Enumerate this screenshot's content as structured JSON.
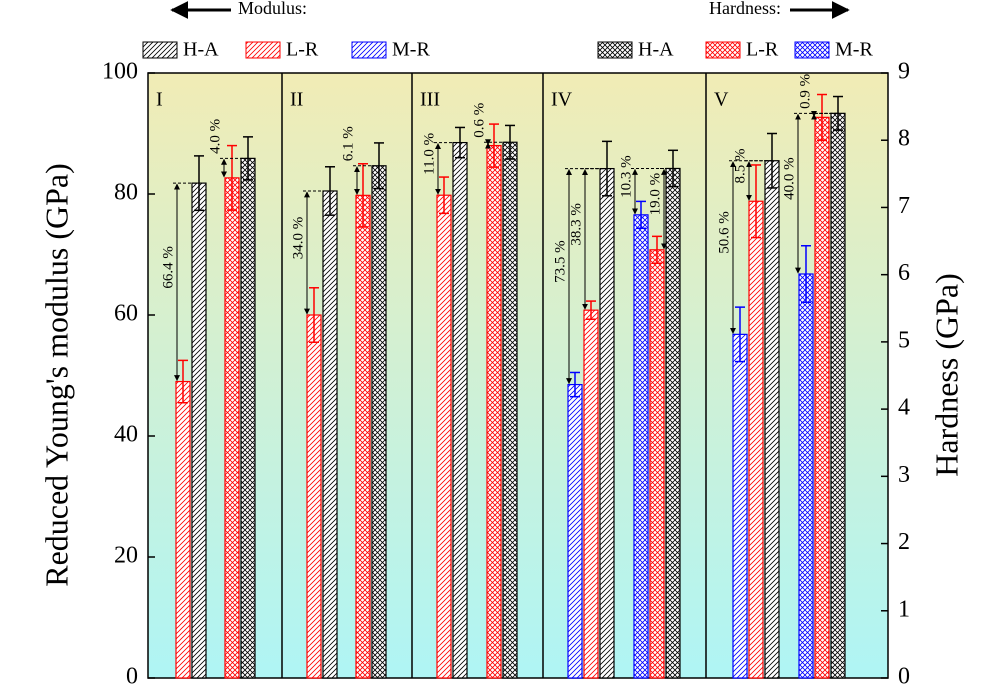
{
  "chart_data": {
    "type": "bar",
    "legend_label_left": "Modulus:",
    "legend_label_right": "Hardness:",
    "y_label": "Reduced Young's modulus (GPa)",
    "y2_label": "Hardness (GPa)",
    "categories": [
      "I",
      "II",
      "III",
      "IV",
      "V"
    ],
    "series": [
      {
        "name": "H-A",
        "color": "#000000",
        "pattern": "hatch",
        "values": [
          81.8,
          80.5,
          88.5,
          84.2,
          85.5
        ],
        "errors": [
          4.5,
          4,
          2.5,
          4.5,
          4.5
        ]
      },
      {
        "name": "L-R",
        "color": "#ff0000",
        "pattern": "hatch",
        "values": [
          49,
          60,
          79.8,
          60.8,
          78.8
        ],
        "errors": [
          3.5,
          4.5,
          3,
          1.5,
          6
        ]
      },
      {
        "name": "M-R",
        "color": "#0000ff",
        "pattern": "hatch",
        "values": [
          null,
          null,
          null,
          48.5,
          56.8
        ],
        "errors": [
          null,
          null,
          null,
          2,
          4.5
        ]
      },
      {
        "name": "H-A",
        "color": "#000000",
        "pattern": "cross",
        "axis": "y2",
        "values": [
          7.73,
          7.62,
          7.97,
          7.58,
          8.4
        ],
        "errors": [
          0.32,
          0.34,
          0.25,
          0.27,
          0.25
        ]
      },
      {
        "name": "L-R",
        "color": "#ff0000",
        "pattern": "cross",
        "axis": "y2",
        "values": [
          7.44,
          7.18,
          7.92,
          6.37,
          8.34
        ],
        "errors": [
          0.48,
          0.47,
          0.32,
          0.2,
          0.34
        ]
      },
      {
        "name": "M-R",
        "color": "#0000ff",
        "pattern": "cross",
        "axis": "y2",
        "values": [
          null,
          null,
          null,
          6.89,
          6.01
        ],
        "errors": [
          null,
          null,
          null,
          0.2,
          0.42
        ]
      }
    ],
    "annotations": [
      "66.4 %",
      "4.0 %",
      "34.0 %",
      "6.1 %",
      "11.0 %",
      "0.6 %",
      "73.5 %",
      "38.3 %",
      "10.3 %",
      "19.0 %",
      "50.6 %",
      "8.5 %",
      "40.0 %",
      "0.9 %"
    ],
    "ylim": [
      0,
      100
    ],
    "yticks": [
      0,
      20,
      40,
      60,
      80,
      100
    ],
    "y2lim": [
      0,
      9
    ],
    "y2ticks": [
      0,
      1,
      2,
      3,
      4,
      5,
      6,
      7,
      8,
      9
    ]
  }
}
